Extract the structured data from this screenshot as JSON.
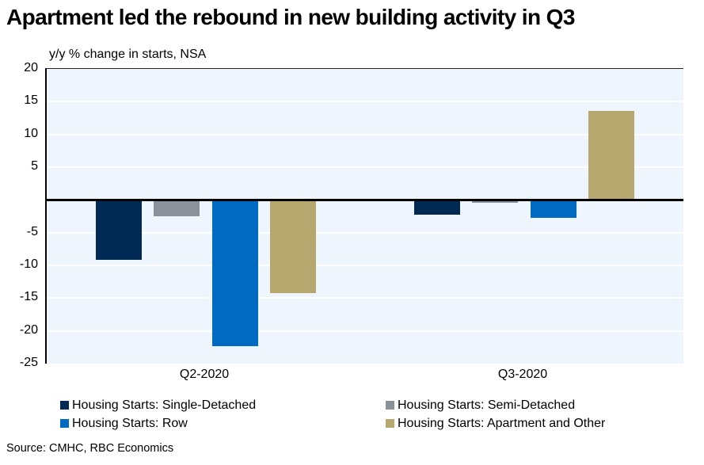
{
  "title": "Apartment led the rebound in new building activity in Q3",
  "subtitle": "y/y % change in starts, NSA",
  "source": "Source: CMHC, RBC Economics",
  "colors": {
    "plot_background": "#eff5fc",
    "gridline": "#ffffff",
    "axis": "#000000",
    "single_detached": "#002a53",
    "semi_detached": "#8b9199",
    "row": "#006ac2",
    "apartment_and_other": "#b6a76e"
  },
  "chart_data": {
    "type": "bar",
    "categories": [
      "Q2-2020",
      "Q3-2020"
    ],
    "series": [
      {
        "key": "single-detached",
        "name": "Housing Starts: Single-Detached",
        "color": "#002a53",
        "values": [
          -9.1,
          -2.3
        ]
      },
      {
        "key": "semi-detached",
        "name": "Housing Starts: Semi-Detached",
        "color": "#8b9199",
        "values": [
          -2.5,
          -0.5
        ]
      },
      {
        "key": "row",
        "name": "Housing Starts: Row",
        "color": "#006ac2",
        "values": [
          -22.3,
          -2.7
        ]
      },
      {
        "key": "apartment-and-other",
        "name": "Housing Starts: Apartment and Other",
        "color": "#b6a76e",
        "values": [
          -14.2,
          13.6
        ]
      }
    ],
    "title": "Apartment led the rebound in new building activity in Q3",
    "ylabel": "y/y % change in starts, NSA",
    "ylim": [
      -25,
      20
    ],
    "ytick_step": 5,
    "yticks_labeled": [
      20,
      15,
      10,
      5,
      -5,
      -10,
      -15,
      -20,
      -25
    ],
    "grid": true,
    "legend_position": "bottom"
  }
}
